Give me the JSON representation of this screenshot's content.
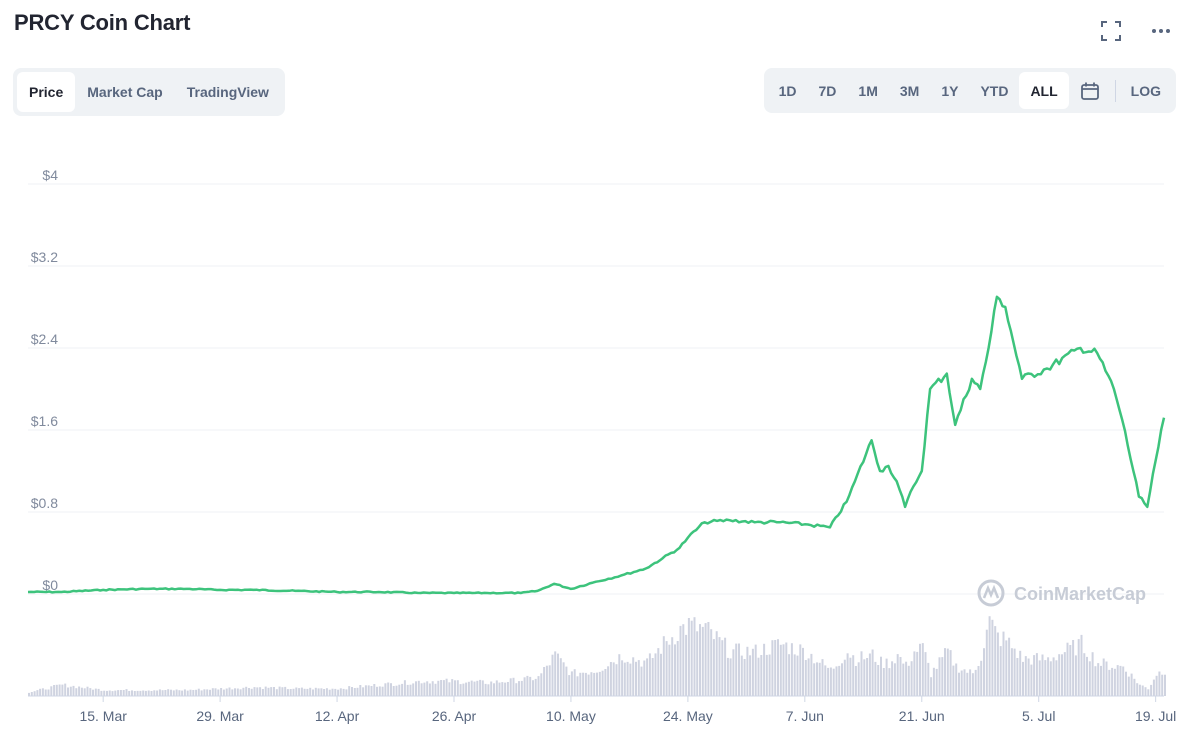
{
  "header": {
    "title": "PRCY Coin Chart"
  },
  "icons": {
    "fullscreen": "fullscreen-icon",
    "more": "more-dots-icon",
    "calendar": "calendar-icon"
  },
  "view_tabs": [
    {
      "label": "Price",
      "active": true
    },
    {
      "label": "Market Cap",
      "active": false
    },
    {
      "label": "TradingView",
      "active": false
    }
  ],
  "ranges": [
    {
      "label": "1D",
      "active": false
    },
    {
      "label": "7D",
      "active": false
    },
    {
      "label": "1M",
      "active": false
    },
    {
      "label": "3M",
      "active": false
    },
    {
      "label": "1Y",
      "active": false
    },
    {
      "label": "YTD",
      "active": false
    },
    {
      "label": "ALL",
      "active": true
    }
  ],
  "log_label": "LOG",
  "watermark": "CoinMarketCap",
  "colors": {
    "line": "#3dc37c",
    "volume": "#cfd3e0",
    "grid": "#eff2f5"
  },
  "chart_data": {
    "type": "line",
    "title": "PRCY Coin Chart",
    "series": [
      {
        "x": [
          "2021-03-06",
          "2021-03-10",
          "2021-03-15",
          "2021-03-20",
          "2021-03-25",
          "2021-03-29",
          "2021-04-02",
          "2021-04-07",
          "2021-04-12",
          "2021-04-17",
          "2021-04-22",
          "2021-04-26",
          "2021-04-30",
          "2021-05-04",
          "2021-05-06",
          "2021-05-08",
          "2021-05-10",
          "2021-05-13",
          "2021-05-16",
          "2021-05-19",
          "2021-05-21",
          "2021-05-23",
          "2021-05-24",
          "2021-05-26",
          "2021-05-29",
          "2021-06-01",
          "2021-06-04",
          "2021-06-07",
          "2021-06-10",
          "2021-06-12",
          "2021-06-13",
          "2021-06-15",
          "2021-06-16",
          "2021-06-17",
          "2021-06-18",
          "2021-06-19",
          "2021-06-20",
          "2021-06-21",
          "2021-06-22",
          "2021-06-24",
          "2021-06-25",
          "2021-06-27",
          "2021-06-28",
          "2021-06-29",
          "2021-06-30",
          "2021-07-01",
          "2021-07-03",
          "2021-07-06",
          "2021-07-10",
          "2021-07-12",
          "2021-07-14",
          "2021-07-15",
          "2021-07-17",
          "2021-07-18",
          "2021-07-19",
          "2021-07-20"
        ],
        "y": [
          0.02,
          0.02,
          0.04,
          0.05,
          0.05,
          0.04,
          0.04,
          0.03,
          0.02,
          0.02,
          0.01,
          0.01,
          0.01,
          0.01,
          0.03,
          0.1,
          0.05,
          0.12,
          0.18,
          0.25,
          0.35,
          0.45,
          0.55,
          0.7,
          0.72,
          0.7,
          0.7,
          0.68,
          0.65,
          0.9,
          1.1,
          1.5,
          1.2,
          1.25,
          1.1,
          0.85,
          1.05,
          1.2,
          2.0,
          2.15,
          1.65,
          2.1,
          2.0,
          2.4,
          2.9,
          2.8,
          2.1,
          2.2,
          2.4,
          2.35,
          2.0,
          1.7,
          0.95,
          0.85,
          1.3,
          1.72
        ]
      },
      {
        "x": [
          "2021-03-06",
          "2021-03-10",
          "2021-03-15",
          "2021-03-20",
          "2021-03-25",
          "2021-03-29",
          "2021-04-02",
          "2021-04-07",
          "2021-04-12",
          "2021-04-17",
          "2021-04-22",
          "2021-04-26",
          "2021-04-30",
          "2021-05-04",
          "2021-05-06",
          "2021-05-08",
          "2021-05-10",
          "2021-05-13",
          "2021-05-16",
          "2021-05-19",
          "2021-05-21",
          "2021-05-23",
          "2021-05-24",
          "2021-05-26",
          "2021-05-29",
          "2021-06-01",
          "2021-06-04",
          "2021-06-07",
          "2021-06-10",
          "2021-06-12",
          "2021-06-13",
          "2021-06-15",
          "2021-06-16",
          "2021-06-17",
          "2021-06-18",
          "2021-06-19",
          "2021-06-20",
          "2021-06-21",
          "2021-06-22",
          "2021-06-24",
          "2021-06-25",
          "2021-06-27",
          "2021-06-28",
          "2021-06-29",
          "2021-06-30",
          "2021-07-01",
          "2021-07-03",
          "2021-07-06",
          "2021-07-10",
          "2021-07-12",
          "2021-07-14",
          "2021-07-15",
          "2021-07-17",
          "2021-07-18",
          "2021-07-19",
          "2021-07-20"
        ],
        "y": [
          0.05,
          0.15,
          0.08,
          0.08,
          0.08,
          0.1,
          0.12,
          0.1,
          0.1,
          0.15,
          0.2,
          0.2,
          0.18,
          0.22,
          0.25,
          0.55,
          0.3,
          0.35,
          0.55,
          0.45,
          0.7,
          0.9,
          0.95,
          0.9,
          0.6,
          0.6,
          0.7,
          0.6,
          0.35,
          0.6,
          0.5,
          0.55,
          0.45,
          0.45,
          0.55,
          0.4,
          0.6,
          0.65,
          0.3,
          0.6,
          0.4,
          0.3,
          0.55,
          1.0,
          0.8,
          0.75,
          0.5,
          0.5,
          0.7,
          0.45,
          0.4,
          0.4,
          0.15,
          0.1,
          0.3,
          0.35
        ]
      }
    ],
    "y_ticks": [
      "$0",
      "$0.8",
      "$1.6",
      "$2.4",
      "$3.2",
      "$4"
    ],
    "ylim": [
      0,
      4
    ],
    "x_ticks": [
      "15. Mar",
      "29. Mar",
      "12. Apr",
      "26. Apr",
      "10. May",
      "24. May",
      "7. Jun",
      "21. Jun",
      "5. Jul",
      "19. Jul"
    ],
    "x_tick_dates": [
      "2021-03-15",
      "2021-03-29",
      "2021-04-12",
      "2021-04-26",
      "2021-05-10",
      "2021-05-24",
      "2021-06-07",
      "2021-06-21",
      "2021-07-05",
      "2021-07-19"
    ],
    "xlim": [
      "2021-03-06",
      "2021-07-20"
    ],
    "volume_relative_max": 1.0,
    "grid": true
  }
}
